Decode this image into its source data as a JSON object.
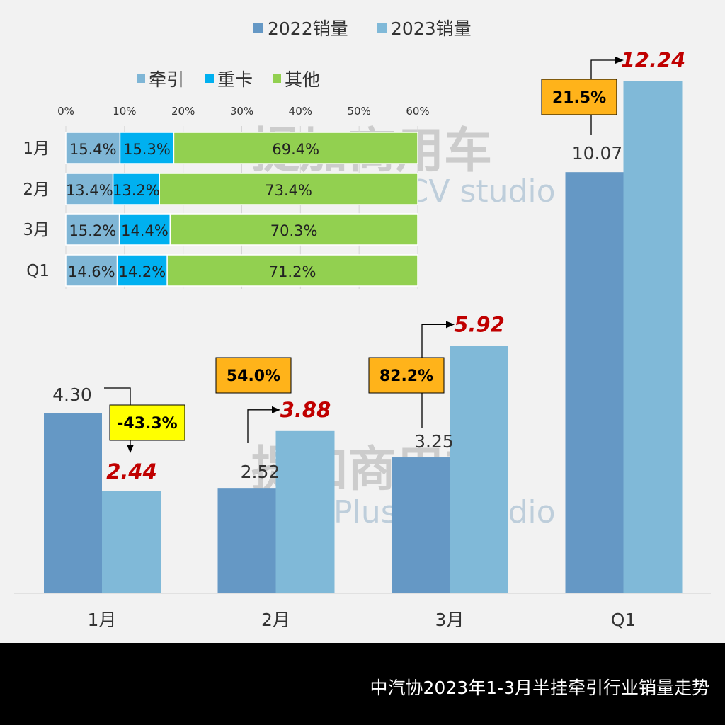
{
  "watermark": {
    "cn": "提加商用车",
    "en": "TruckPlus CV studio"
  },
  "chart_data": [
    {
      "type": "bar",
      "categories": [
        "1月",
        "2月",
        "3月",
        "Q1"
      ],
      "series": [
        {
          "name": "2022销量",
          "values": [
            4.3,
            2.52,
            3.25,
            10.07
          ],
          "color": "#6598c5"
        },
        {
          "name": "2023销量",
          "values": [
            2.44,
            3.88,
            5.92,
            12.24
          ],
          "color": "#80b9d8"
        }
      ],
      "data_labels_2022": [
        "4.30",
        "2.52",
        "3.25",
        "10.07"
      ],
      "data_labels_2023": [
        "2.44",
        "3.88",
        "5.92",
        "12.24"
      ],
      "growth_labels": [
        "-43.3%",
        "54.0%",
        "82.2%",
        "21.5%"
      ],
      "growth_colors": [
        "#ffff00",
        "#ffb31a",
        "#ffb31a",
        "#ffb31a"
      ],
      "label_2023_color": "#c00000",
      "legend": "top",
      "ylim": [
        0,
        12.24
      ],
      "grid": false
    },
    {
      "type": "bar",
      "orientation": "horizontal-stacked",
      "categories": [
        "1月",
        "2月",
        "3月",
        "Q1"
      ],
      "series": [
        {
          "name": "牵引",
          "values": [
            15.4,
            13.4,
            15.2,
            14.6
          ],
          "color": "#7fb6d6"
        },
        {
          "name": "重卡",
          "values": [
            15.3,
            13.2,
            14.4,
            14.2
          ],
          "color": "#00b0f0"
        },
        {
          "name": "其他",
          "values": [
            69.4,
            73.4,
            70.3,
            71.2
          ],
          "color": "#92d050"
        }
      ],
      "x_ticks": [
        "0%",
        "10%",
        "20%",
        "30%",
        "40%",
        "50%",
        "60%"
      ],
      "legend": "top",
      "grid": true
    }
  ],
  "footer": {
    "caption": "中汽协2023年1-3月半挂牵引行业销量走势"
  }
}
